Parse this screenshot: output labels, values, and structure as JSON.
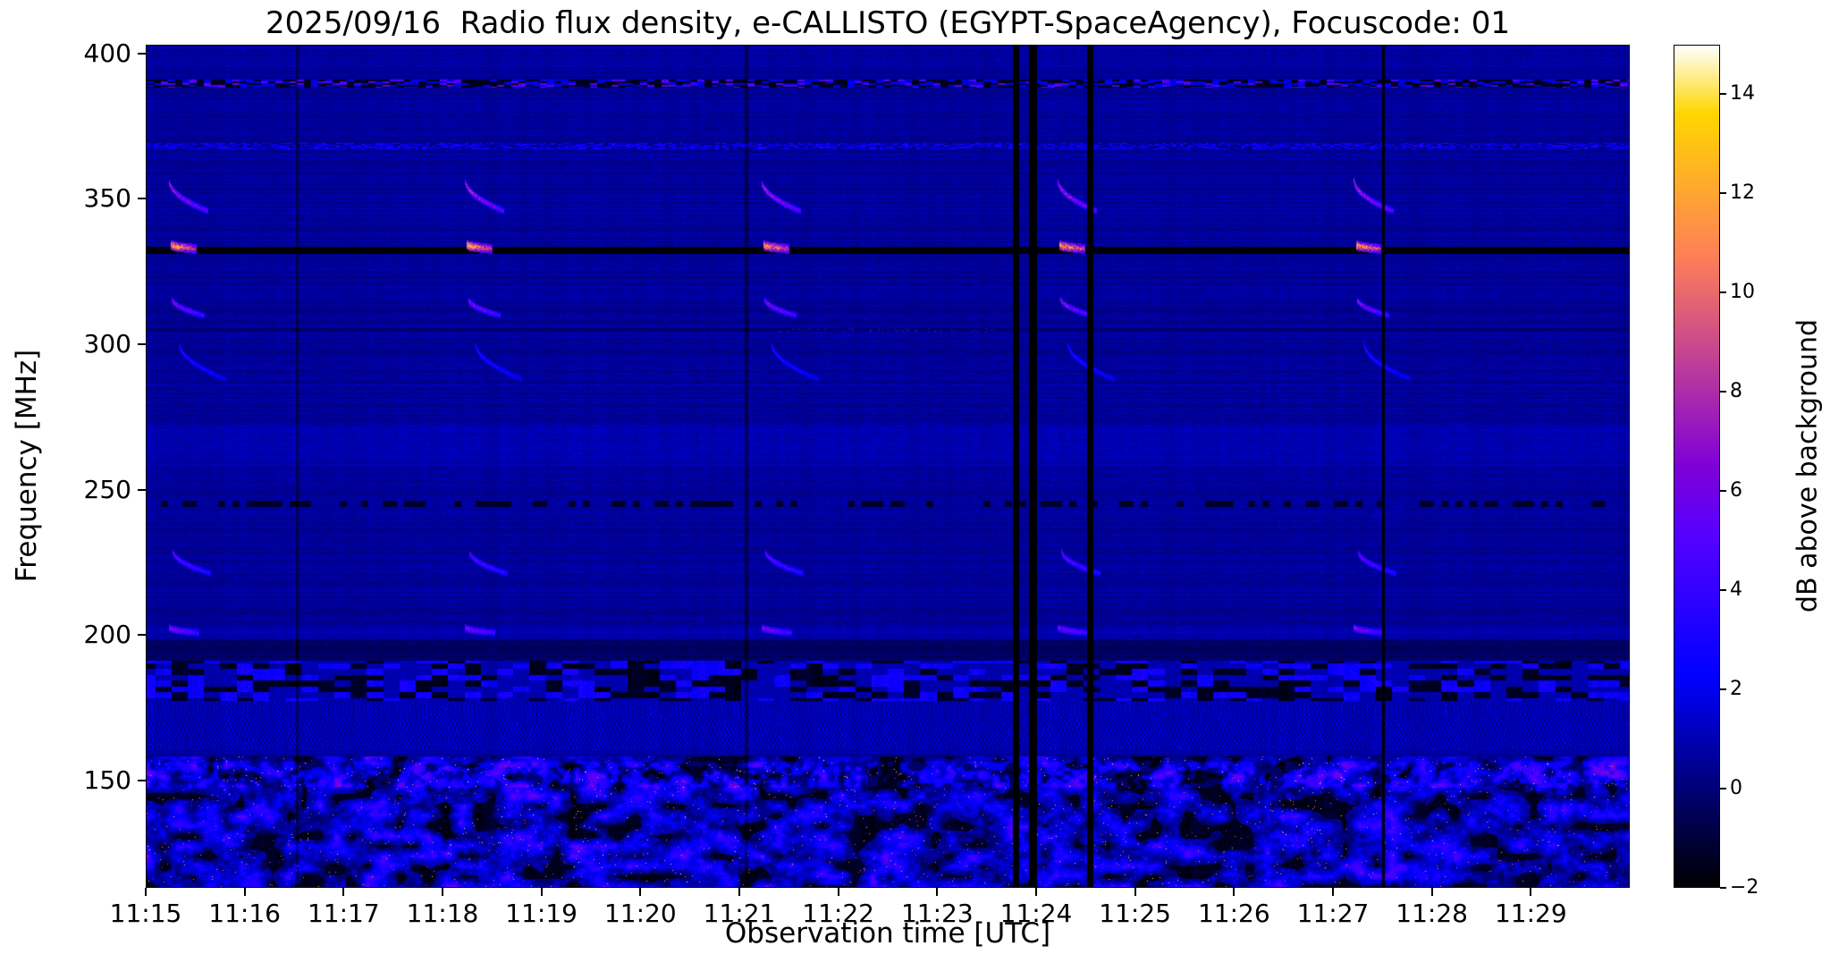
{
  "chart_data": {
    "type": "heatmap",
    "title": "2025/09/16  Radio flux density, e-CALLISTO (EGYPT-SpaceAgency), Focuscode: 01",
    "xlabel": "Observation time [UTC]",
    "ylabel": "Frequency [MHz]",
    "x_ticks": [
      "11:15",
      "11:16",
      "11:17",
      "11:18",
      "11:19",
      "11:20",
      "11:21",
      "11:22",
      "11:23",
      "11:24",
      "11:25",
      "11:26",
      "11:27",
      "11:28",
      "11:29"
    ],
    "x_range_minutes": 15,
    "y_ticks": [
      400,
      350,
      300,
      250,
      200,
      150
    ],
    "y_range": [
      113,
      403
    ],
    "colormap": "gnuplot2",
    "colorbar": {
      "label": "dB above background",
      "ticks": [
        -2,
        0,
        2,
        4,
        6,
        8,
        10,
        12,
        14
      ],
      "range": [
        -2,
        15
      ]
    },
    "features": {
      "description": "Dynamic radio spectrum: dark blue noise background, strong broadband RFI below ~160 MHz, periodic sweeps/calibration signatures every 3 minutes (at ~11:15.2, 11:18.2, 11:21.2, 11:24.2, 11:27.2), a blanked black line at ~332 MHz with bright dashes at burst times, speckled RFI rows near 390/368/245 MHz, and black data-gap columns just before 11:24, at ~11:24.6 and ~11:27.5.",
      "burst_times_min": [
        0.2,
        3.2,
        6.2,
        9.2,
        12.2
      ],
      "burst_curves": [
        {
          "f0": 357,
          "f1": 346,
          "dt0": 0.02,
          "dt1": 0.42,
          "amp": 9,
          "hw": 1.2
        },
        {
          "f0": 334.5,
          "f1": 333,
          "dt0": 0.04,
          "dt1": 0.3,
          "amp": 14,
          "hw": 1.7
        },
        {
          "f0": 316,
          "f1": 310,
          "dt0": 0.05,
          "dt1": 0.38,
          "amp": 8,
          "hw": 1.1
        },
        {
          "f0": 301,
          "f1": 288,
          "dt0": 0.12,
          "dt1": 0.6,
          "amp": 4.2,
          "hw": 1.0
        },
        {
          "f0": 229,
          "f1": 221,
          "dt0": 0.06,
          "dt1": 0.45,
          "amp": 6.5,
          "hw": 1.1
        },
        {
          "f0": 202.5,
          "f1": 200.5,
          "dt0": 0.02,
          "dt1": 0.33,
          "amp": 7.5,
          "hw": 1.3
        }
      ],
      "blanked_line_mhz": 332.5,
      "dark_line_mhz": 305,
      "speckle_rows_mhz": [
        390,
        368.5,
        245
      ],
      "rfi_band_low_mhz": [
        113,
        158
      ],
      "pager_band_mhz": [
        160,
        177
      ],
      "segment_band_mhz": [
        177,
        191
      ],
      "gap_columns_min": [
        {
          "t": 8.8,
          "w": 0.07
        },
        {
          "t": 8.97,
          "w": 0.08
        },
        {
          "t": 9.55,
          "w": 0.07
        },
        {
          "t": 12.52,
          "w": 0.035
        }
      ],
      "faint_columns_min": [
        {
          "t": 1.52,
          "w": 0.03
        },
        {
          "t": 6.07,
          "w": 0.03
        }
      ]
    }
  }
}
